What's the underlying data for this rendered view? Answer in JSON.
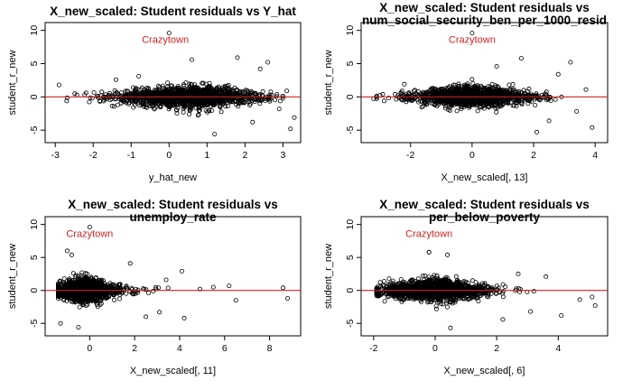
{
  "chart_data": [
    {
      "type": "scatter",
      "title": "X_new_scaled: Student residuals vs Y_hat",
      "xlabel": "y_hat_new",
      "ylabel": "student_r_new",
      "xlim": [
        -3.1,
        3.3
      ],
      "ylim": [
        -6.2,
        10.5
      ],
      "xticks": [
        -3,
        -2,
        -1,
        0,
        1,
        2,
        3
      ],
      "yticks": [
        -5,
        0,
        5,
        10
      ],
      "annotation": {
        "text": "Crazytown",
        "x": 0.0,
        "y": 9.6,
        "label_x": -0.1,
        "label_y": 8.5
      },
      "hline": {
        "y": 0,
        "color": "#cc2222"
      },
      "point_cloud": {
        "center_x": 0.5,
        "spread_x": 1.0,
        "spread_y": 1.6,
        "n": 1400
      },
      "points": [
        [
          -2.9,
          1.8
        ],
        [
          -2.7,
          -0.6
        ],
        [
          3.2,
          -4.8
        ],
        [
          3.1,
          0.9
        ],
        [
          2.6,
          5.2
        ],
        [
          1.8,
          5.9
        ],
        [
          1.2,
          -5.6
        ],
        [
          2.4,
          4.2
        ],
        [
          -0.8,
          3.1
        ],
        [
          -1.4,
          2.6
        ],
        [
          0.6,
          5.6
        ],
        [
          2.9,
          -1.8
        ],
        [
          3.3,
          -3.1
        ],
        [
          2.2,
          -3.8
        ]
      ]
    },
    {
      "type": "scatter",
      "title": "X_new_scaled: Student residuals vs",
      "subtitle": "num_social_security_ben_per_1000_resid",
      "xlabel": "X_new_scaled[, 13]",
      "ylabel": "student_r_new",
      "xlim": [
        -3.4,
        4.2
      ],
      "ylim": [
        -6.2,
        10.5
      ],
      "xticks": [
        -2,
        0,
        2,
        4
      ],
      "yticks": [
        -5,
        0,
        5,
        10
      ],
      "annotation": {
        "text": "Crazytown",
        "x": 0.0,
        "y": 9.6,
        "label_x": 0.0,
        "label_y": 8.5
      },
      "hline": {
        "y": 0,
        "color": "#cc2222"
      },
      "point_cloud": {
        "center_x": 0.0,
        "spread_x": 1.0,
        "spread_y": 1.5,
        "n": 1400
      },
      "points": [
        [
          -3.2,
          -0.3
        ],
        [
          3.9,
          -4.6
        ],
        [
          3.7,
          1.1
        ],
        [
          3.2,
          5.2
        ],
        [
          1.6,
          5.8
        ],
        [
          2.1,
          -5.3
        ],
        [
          2.8,
          3.4
        ],
        [
          -2.2,
          1.9
        ],
        [
          0.8,
          4.6
        ],
        [
          3.4,
          -2.2
        ],
        [
          -2.9,
          0.4
        ],
        [
          2.5,
          -3.6
        ]
      ]
    },
    {
      "type": "scatter",
      "title": "X_new_scaled: Student residuals vs",
      "subtitle": "unemploy_rate",
      "xlabel": "X_new_scaled[, 11]",
      "ylabel": "student_r_new",
      "xlim": [
        -1.7,
        9.1
      ],
      "ylim": [
        -6.2,
        10.5
      ],
      "xticks": [
        0,
        2,
        4,
        6,
        8
      ],
      "yticks": [
        -5,
        0,
        5,
        10
      ],
      "annotation": {
        "text": "Crazytown",
        "x": 0.0,
        "y": 9.6,
        "label_x": 0.0,
        "label_y": 8.5
      },
      "hline": {
        "y": 0,
        "color": "#cc2222"
      },
      "point_cloud": {
        "center_x": -0.3,
        "spread_x": 0.7,
        "spread_y": 1.7,
        "n": 1400
      },
      "points": [
        [
          8.8,
          -1.2
        ],
        [
          8.6,
          0.4
        ],
        [
          6.5,
          -1.5
        ],
        [
          6.2,
          0.7
        ],
        [
          5.5,
          0.5
        ],
        [
          4.2,
          -4.2
        ],
        [
          4.1,
          2.9
        ],
        [
          3.1,
          -3.3
        ],
        [
          3.4,
          1.6
        ],
        [
          4.9,
          0.2
        ],
        [
          2.5,
          -4.0
        ],
        [
          -1.0,
          6.0
        ],
        [
          -0.8,
          5.4
        ],
        [
          1.8,
          4.1
        ],
        [
          -1.3,
          -5.0
        ],
        [
          -0.5,
          -5.6
        ]
      ]
    },
    {
      "type": "scatter",
      "title": "X_new_scaled: Student residuals vs",
      "subtitle": "per_below_poverty",
      "xlabel": "X_new_scaled[, 6]",
      "ylabel": "student_r_new",
      "xlim": [
        -2.2,
        5.4
      ],
      "ylim": [
        -6.2,
        10.5
      ],
      "xticks": [
        -2,
        0,
        2,
        4
      ],
      "yticks": [
        -5,
        0,
        5,
        10
      ],
      "annotation": {
        "text": "Crazytown",
        "x": -0.2,
        "y": 5.8,
        "label_x": -0.2,
        "label_y": 8.5
      },
      "hline": {
        "y": 0,
        "color": "#cc2222"
      },
      "point_cloud": {
        "center_x": 0.0,
        "spread_x": 0.9,
        "spread_y": 1.6,
        "n": 1400
      },
      "points": [
        [
          5.2,
          -2.3
        ],
        [
          5.1,
          -1.0
        ],
        [
          4.7,
          -1.4
        ],
        [
          4.1,
          -3.8
        ],
        [
          3.6,
          2.1
        ],
        [
          3.1,
          -3.2
        ],
        [
          2.7,
          2.5
        ],
        [
          -1.9,
          0.1
        ],
        [
          -1.5,
          1.8
        ],
        [
          -0.2,
          5.8
        ],
        [
          0.4,
          5.4
        ],
        [
          0.5,
          -5.7
        ],
        [
          2.2,
          -4.4
        ]
      ]
    }
  ]
}
